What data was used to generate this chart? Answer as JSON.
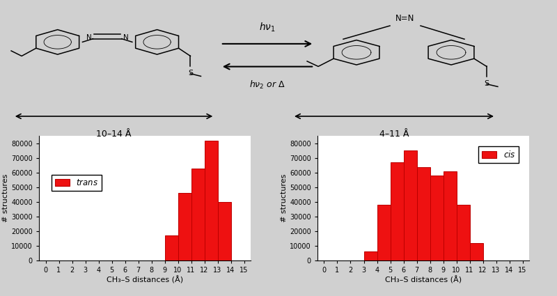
{
  "trans_values": [
    0,
    0,
    0,
    0,
    0,
    0,
    0,
    0,
    0,
    17000,
    46000,
    63000,
    82000,
    40000,
    0,
    0
  ],
  "cis_values": [
    0,
    0,
    0,
    6000,
    38000,
    67000,
    75000,
    64000,
    58000,
    61000,
    38000,
    12000,
    0,
    0,
    0,
    0
  ],
  "bar_color": "#EE1111",
  "bar_edgecolor": "#BB0000",
  "ylim": [
    0,
    85000
  ],
  "yticks": [
    0,
    10000,
    20000,
    30000,
    40000,
    50000,
    60000,
    70000,
    80000
  ],
  "xticks": [
    0,
    1,
    2,
    3,
    4,
    5,
    6,
    7,
    8,
    9,
    10,
    11,
    12,
    13,
    14,
    15
  ],
  "xlabel": "CH₃–S distances (Å)",
  "ylabel": "# structures",
  "trans_label": "trans",
  "cis_label": "cis",
  "bg_color": "#d0d0d0",
  "arrow_text_left": "10–14 Å",
  "arrow_text_right": "4–11 Å",
  "reaction_text_top": "hν₁",
  "reaction_text_bottom": "hν₂ or Δ"
}
